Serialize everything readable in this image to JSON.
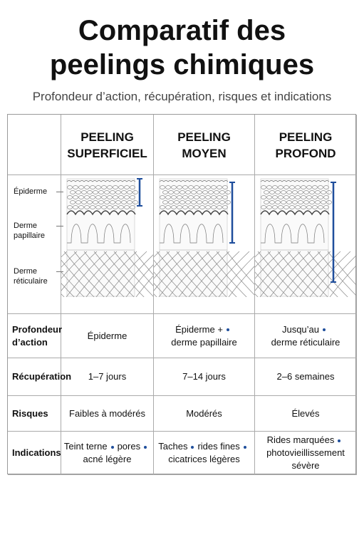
{
  "header": {
    "title_lines": [
      "Comparatif des",
      "peelings chimiques"
    ],
    "subtitle": "Profondeur d’action, récupération, risques et indications"
  },
  "table": {
    "columns": [
      {
        "lines": [
          "PEELING",
          "SUPERFICIEL"
        ]
      },
      {
        "lines": [
          "PEELING",
          "MOYEN"
        ]
      },
      {
        "lines": [
          "PEELING",
          "PROFOND"
        ]
      }
    ],
    "layer_labels": [
      [
        "Épiderme"
      ],
      [
        "Derme",
        "papillaire"
      ],
      [
        "Derme",
        "réticulaire"
      ]
    ],
    "rows": [
      {
        "label": [
          "Profondeur",
          "d’action"
        ],
        "cells": [
          [
            [
              "Épiderme"
            ]
          ],
          [
            [
              "Épiderme +"
            ],
            [
              "derme papillaire"
            ]
          ],
          [
            [
              "Jusqu’au"
            ],
            [
              "derme réticulaire"
            ]
          ]
        ]
      },
      {
        "label": [
          "Récupération"
        ],
        "cells": [
          [
            [
              "1–7 jours"
            ]
          ],
          [
            [
              "7–14 jours"
            ]
          ],
          [
            [
              "2–6 semaines"
            ]
          ]
        ]
      },
      {
        "label": [
          "Risques"
        ],
        "cells": [
          [
            [
              "Faibles à modérés"
            ]
          ],
          [
            [
              "Modérés"
            ]
          ],
          [
            [
              "Élevés"
            ]
          ]
        ]
      },
      {
        "label": [
          "Indications"
        ],
        "cells": [
          [
            [
              "Teint terne",
              "pores"
            ],
            [
              "acné légère"
            ]
          ],
          [
            [
              "Taches",
              "rides fines"
            ],
            [
              "cicatrices légères"
            ]
          ],
          [
            [
              "Rides marquées"
            ],
            [
              "photovieillissement sévère"
            ]
          ]
        ]
      }
    ]
  }
}
